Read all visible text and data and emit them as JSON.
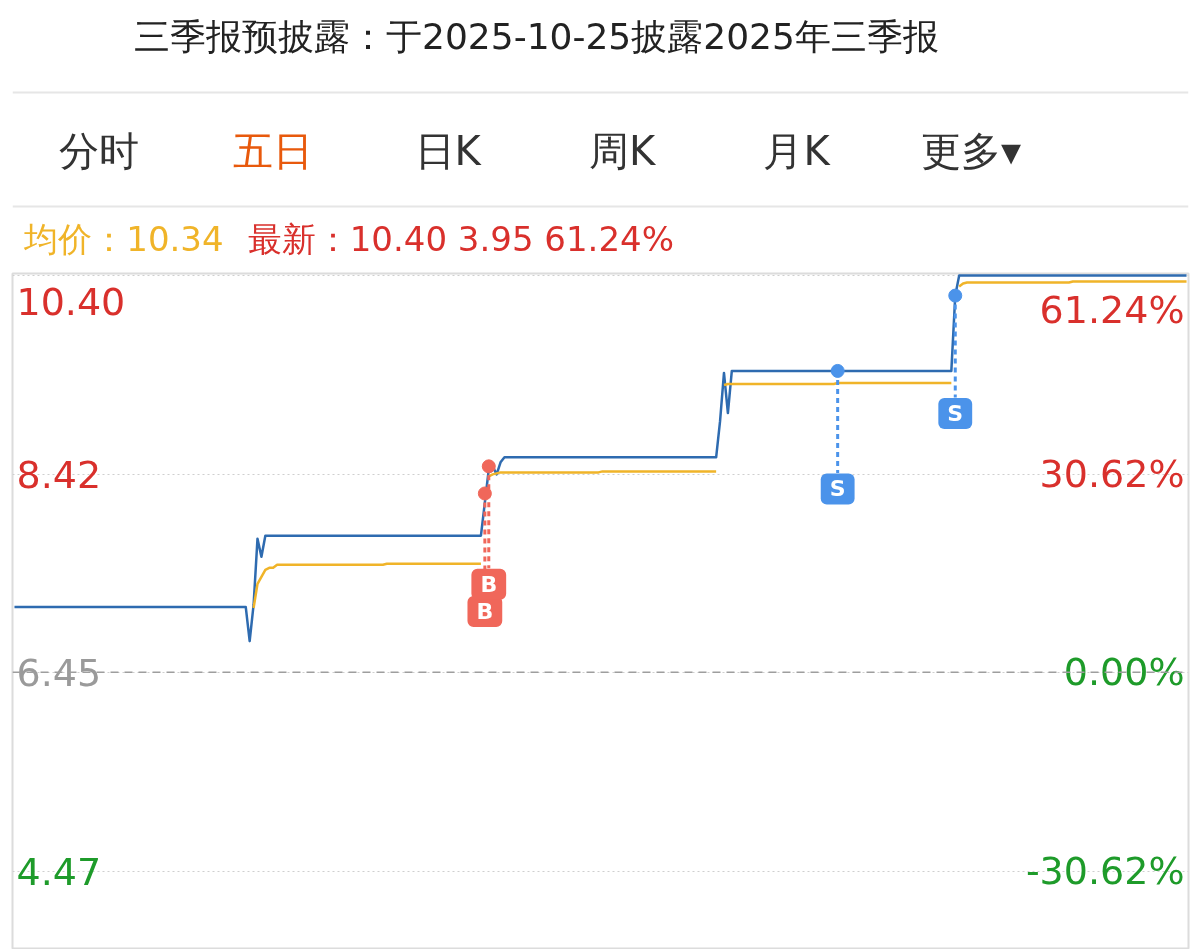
{
  "chart_data": {
    "type": "line",
    "title": "三季报预披露：于2025-10-25披露2025年三季报",
    "annotations": [
      "分时",
      "五日",
      "日K",
      "周K",
      "月K",
      "更多▾",
      "均价：10.34",
      "最新：10.40 3.95 61.24%"
    ],
    "categories": [
      null,
      null,
      null,
      null,
      null,
      null,
      null,
      null,
      null,
      null,
      null,
      null,
      null,
      null,
      null,
      null,
      null,
      null,
      null,
      null,
      null,
      null,
      null,
      null,
      null,
      null,
      null,
      null,
      null,
      null,
      null,
      null,
      null,
      null,
      null,
      null,
      null,
      null,
      null,
      null,
      null,
      null,
      null,
      null,
      null,
      null,
      null,
      null,
      null,
      null,
      null,
      null,
      null,
      null,
      null,
      null,
      null,
      null,
      null,
      null,
      null,
      null,
      null,
      null,
      null,
      null,
      null,
      null,
      null,
      null,
      null,
      null,
      null,
      null,
      null,
      null,
      null,
      null,
      null,
      null,
      null,
      null,
      null,
      null,
      null,
      null,
      null,
      null,
      null,
      null,
      null,
      null,
      null,
      null,
      null,
      null,
      null,
      null,
      null,
      null,
      null,
      null,
      null,
      null,
      null,
      null,
      null,
      null,
      null,
      null,
      null,
      null,
      null,
      null,
      null,
      null,
      null,
      null,
      null,
      null,
      null,
      null,
      null,
      null,
      null,
      null,
      null,
      null,
      null,
      null,
      null,
      null,
      null,
      null,
      null,
      null,
      null,
      null,
      null,
      null,
      null,
      null,
      null,
      null,
      null,
      null,
      null,
      null,
      null,
      null,
      null,
      null,
      null,
      null,
      null,
      null,
      null,
      null,
      null,
      null,
      null,
      null,
      null,
      null,
      null,
      null,
      null,
      null,
      null,
      null,
      null,
      null,
      null,
      null,
      null,
      null,
      null,
      null,
      null,
      null,
      null,
      null,
      null,
      null,
      null,
      null,
      null,
      null,
      null,
      null,
      null,
      null,
      null,
      null,
      null,
      null,
      null,
      null,
      null,
      null,
      null,
      null,
      null,
      null,
      null,
      null,
      null,
      null,
      null,
      null,
      null,
      null,
      null,
      null,
      null,
      null,
      null,
      null,
      null,
      null,
      null,
      null,
      null,
      null,
      null,
      null,
      null,
      null,
      null,
      null,
      null,
      null,
      null,
      null,
      null,
      null,
      null,
      null,
      null,
      null,
      null,
      null,
      null,
      null,
      null,
      null,
      null,
      null,
      null,
      null,
      null,
      null,
      null,
      null,
      null,
      null,
      null,
      null,
      null,
      null,
      null,
      null,
      null,
      null,
      null,
      null,
      null,
      null,
      null,
      null,
      null,
      null,
      null,
      null,
      null,
      null,
      null,
      null,
      null,
      null,
      null,
      null,
      null,
      null,
      null,
      null,
      null,
      null,
      null,
      null,
      null,
      null,
      null,
      null,
      null,
      null,
      null,
      null,
      null,
      null
    ],
    "series": [
      {
        "color": "#2e6bb0",
        "values": [
          7.1,
          7.1,
          7.1,
          7.1,
          7.1,
          7.1,
          7.1,
          7.1,
          7.1,
          7.1,
          7.1,
          7.1,
          7.1,
          7.1,
          7.1,
          7.1,
          7.1,
          7.1,
          7.1,
          7.1,
          7.1,
          7.1,
          7.1,
          7.1,
          7.1,
          7.1,
          7.1,
          7.1,
          7.1,
          7.1,
          7.1,
          7.1,
          7.1,
          7.1,
          7.1,
          7.1,
          7.1,
          7.1,
          7.1,
          7.1,
          7.1,
          7.1,
          7.1,
          7.1,
          7.1,
          7.1,
          7.1,
          7.1,
          7.1,
          7.1,
          7.1,
          7.1,
          7.1,
          7.1,
          7.1,
          7.1,
          7.1,
          7.1,
          7.1,
          7.1,
          6.76,
          7.12,
          7.78,
          7.6,
          7.81,
          7.81,
          7.81,
          7.81,
          7.81,
          7.81,
          7.81,
          7.81,
          7.81,
          7.81,
          7.81,
          7.81,
          7.81,
          7.81,
          7.81,
          7.81,
          7.81,
          7.81,
          7.81,
          7.81,
          7.81,
          7.81,
          7.81,
          7.81,
          7.81,
          7.81,
          7.81,
          7.81,
          7.81,
          7.81,
          7.81,
          7.81,
          7.81,
          7.81,
          7.81,
          7.81,
          7.81,
          7.81,
          7.81,
          7.81,
          7.81,
          7.81,
          7.81,
          7.81,
          7.81,
          7.81,
          7.81,
          7.81,
          7.81,
          7.81,
          7.81,
          7.81,
          7.81,
          7.81,
          7.81,
          7.81,
          8.14,
          8.47,
          8.5,
          8.42,
          8.54,
          8.59,
          8.59,
          8.59,
          8.59,
          8.59,
          8.59,
          8.59,
          8.59,
          8.59,
          8.59,
          8.59,
          8.59,
          8.59,
          8.59,
          8.59,
          8.59,
          8.59,
          8.59,
          8.59,
          8.59,
          8.59,
          8.59,
          8.59,
          8.59,
          8.59,
          8.59,
          8.59,
          8.59,
          8.59,
          8.59,
          8.59,
          8.59,
          8.59,
          8.59,
          8.59,
          8.59,
          8.59,
          8.59,
          8.59,
          8.59,
          8.59,
          8.59,
          8.59,
          8.59,
          8.59,
          8.59,
          8.59,
          8.59,
          8.59,
          8.59,
          8.59,
          8.59,
          8.59,
          8.59,
          8.59,
          8.95,
          9.43,
          9.03,
          9.45,
          9.45,
          9.45,
          9.45,
          9.45,
          9.45,
          9.45,
          9.45,
          9.45,
          9.45,
          9.45,
          9.45,
          9.45,
          9.45,
          9.45,
          9.45,
          9.45,
          9.45,
          9.45,
          9.45,
          9.45,
          9.45,
          9.45,
          9.45,
          9.45,
          9.45,
          9.45,
          9.45,
          9.45,
          9.45,
          9.45,
          9.45,
          9.45,
          9.45,
          9.45,
          9.45,
          9.45,
          9.45,
          9.45,
          9.45,
          9.45,
          9.45,
          9.45,
          9.45,
          9.45,
          9.45,
          9.45,
          9.45,
          9.45,
          9.45,
          9.45,
          9.45,
          9.45,
          9.45,
          9.45,
          9.45,
          9.45,
          10.2,
          10.4,
          10.4,
          10.4,
          10.4,
          10.4,
          10.4,
          10.4,
          10.4,
          10.4,
          10.4,
          10.4,
          10.4,
          10.4,
          10.4,
          10.4,
          10.4,
          10.4,
          10.4,
          10.4,
          10.4,
          10.4,
          10.4,
          10.4,
          10.4,
          10.4,
          10.4,
          10.4,
          10.4,
          10.4,
          10.4,
          10.4,
          10.4,
          10.4,
          10.4,
          10.4,
          10.4,
          10.4,
          10.4,
          10.4,
          10.4,
          10.4,
          10.4,
          10.4,
          10.4,
          10.4,
          10.4,
          10.4,
          10.4,
          10.4,
          10.4,
          10.4,
          10.4,
          10.4,
          10.4,
          10.4,
          10.4,
          10.4,
          10.4,
          10.4
        ]
      },
      {
        "color": "#f0b429",
        "values": [
          null,
          null,
          null,
          null,
          null,
          null,
          null,
          null,
          null,
          null,
          null,
          null,
          null,
          null,
          null,
          null,
          null,
          null,
          null,
          null,
          null,
          null,
          null,
          null,
          null,
          null,
          null,
          null,
          null,
          null,
          null,
          null,
          null,
          null,
          null,
          null,
          null,
          null,
          null,
          null,
          null,
          null,
          null,
          null,
          null,
          null,
          null,
          null,
          null,
          null,
          null,
          null,
          null,
          null,
          null,
          null,
          null,
          null,
          null,
          null,
          null,
          7.09,
          7.33,
          7.4,
          7.47,
          7.49,
          7.49,
          7.52,
          7.52,
          7.52,
          7.52,
          7.52,
          7.52,
          7.52,
          7.52,
          7.52,
          7.52,
          7.52,
          7.52,
          7.52,
          7.52,
          7.52,
          7.52,
          7.52,
          7.52,
          7.52,
          7.52,
          7.52,
          7.52,
          7.52,
          7.52,
          7.52,
          7.52,
          7.52,
          7.52,
          7.53,
          7.53,
          7.53,
          7.53,
          7.53,
          7.53,
          7.53,
          7.53,
          7.53,
          7.53,
          7.53,
          7.53,
          7.53,
          7.53,
          7.53,
          7.53,
          7.53,
          7.53,
          7.53,
          7.53,
          7.53,
          7.53,
          7.53,
          7.53,
          7.53,
          null,
          8.4,
          8.42,
          8.43,
          8.44,
          8.44,
          8.44,
          8.44,
          8.44,
          8.44,
          8.44,
          8.44,
          8.44,
          8.44,
          8.44,
          8.44,
          8.44,
          8.44,
          8.44,
          8.44,
          8.44,
          8.44,
          8.44,
          8.44,
          8.44,
          8.44,
          8.44,
          8.44,
          8.44,
          8.44,
          8.45,
          8.45,
          8.45,
          8.45,
          8.45,
          8.45,
          8.45,
          8.45,
          8.45,
          8.45,
          8.45,
          8.45,
          8.45,
          8.45,
          8.45,
          8.45,
          8.45,
          8.45,
          8.45,
          8.45,
          8.45,
          8.45,
          8.45,
          8.45,
          8.45,
          8.45,
          8.45,
          8.45,
          8.45,
          8.45,
          null,
          9.31,
          9.32,
          9.32,
          9.32,
          9.32,
          9.32,
          9.32,
          9.32,
          9.32,
          9.32,
          9.32,
          9.32,
          9.32,
          9.32,
          9.32,
          9.32,
          9.32,
          9.32,
          9.32,
          9.32,
          9.32,
          9.32,
          9.32,
          9.32,
          9.32,
          9.32,
          9.32,
          9.32,
          9.32,
          9.33,
          9.33,
          9.33,
          9.33,
          9.33,
          9.33,
          9.33,
          9.33,
          9.33,
          9.33,
          9.33,
          9.33,
          9.33,
          9.33,
          9.33,
          9.33,
          9.33,
          9.33,
          9.33,
          9.33,
          9.33,
          9.33,
          9.33,
          9.33,
          9.33,
          9.33,
          9.33,
          9.33,
          9.33,
          9.33,
          null,
          10.29,
          10.32,
          10.33,
          10.33,
          10.33,
          10.33,
          10.33,
          10.33,
          10.33,
          10.33,
          10.33,
          10.33,
          10.33,
          10.33,
          10.33,
          10.33,
          10.33,
          10.33,
          10.33,
          10.33,
          10.33,
          10.33,
          10.33,
          10.33,
          10.33,
          10.33,
          10.33,
          10.33,
          10.33,
          10.34,
          10.34,
          10.34,
          10.34,
          10.34,
          10.34,
          10.34,
          10.34,
          10.34,
          10.34,
          10.34,
          10.34,
          10.34,
          10.34,
          10.34,
          10.34,
          10.34,
          10.34,
          10.34,
          10.34,
          10.34,
          10.34,
          10.34,
          10.34,
          10.34,
          10.34,
          10.34,
          10.34,
          10.34,
          10.34
        ]
      },
      {
        "type": "scatter",
        "name": "B",
        "color": "#f0675a",
        "marker": "circle",
        "values": [
          null,
          null,
          null,
          null,
          null,
          null,
          null,
          null,
          null,
          null,
          null,
          null,
          null,
          null,
          null,
          null,
          null,
          null,
          null,
          null,
          null,
          null,
          null,
          null,
          null,
          null,
          null,
          null,
          null,
          null,
          null,
          null,
          null,
          null,
          null,
          null,
          null,
          null,
          null,
          null,
          null,
          null,
          null,
          null,
          null,
          null,
          null,
          null,
          null,
          null,
          null,
          null,
          null,
          null,
          null,
          null,
          null,
          null,
          null,
          null,
          null,
          null,
          null,
          null,
          null,
          null,
          null,
          null,
          null,
          null,
          null,
          null,
          null,
          null,
          null,
          null,
          null,
          null,
          null,
          null,
          null,
          null,
          null,
          null,
          null,
          null,
          null,
          null,
          null,
          null,
          null,
          null,
          null,
          null,
          null,
          null,
          null,
          null,
          null,
          null,
          null,
          null,
          null,
          null,
          null,
          null,
          null,
          null,
          null,
          null,
          null,
          null,
          null,
          null,
          null,
          null,
          null,
          null,
          null,
          null,
          8.23,
          8.5,
          null,
          null,
          null,
          null,
          null,
          null,
          null,
          null,
          null,
          null,
          null,
          null,
          null,
          null,
          null,
          null,
          null,
          null,
          null,
          null,
          null,
          null,
          null,
          null,
          null,
          null,
          null,
          null,
          null,
          null,
          null,
          null,
          null,
          null,
          null,
          null,
          null,
          null,
          null,
          null,
          null,
          null,
          null,
          null,
          null,
          null,
          null,
          null,
          null,
          null,
          null,
          null,
          null,
          null,
          null,
          null,
          null,
          null,
          null,
          null,
          null,
          null,
          null,
          null,
          null,
          null,
          null,
          null,
          null,
          null,
          null,
          null,
          null,
          null,
          null,
          null,
          null,
          null,
          null,
          null,
          null,
          null,
          null,
          null,
          null,
          null,
          null,
          null,
          null,
          null,
          null,
          null,
          null,
          null,
          null,
          null,
          null,
          null,
          null,
          null,
          null,
          null,
          null,
          null,
          null,
          null,
          null,
          null,
          null,
          null,
          null,
          null,
          null,
          null,
          null,
          null,
          null,
          null,
          null,
          null,
          null,
          null,
          null,
          null,
          null,
          null,
          null,
          null,
          null,
          null,
          null,
          null,
          null,
          null,
          null,
          null,
          null,
          null,
          null,
          null,
          null,
          null,
          null,
          null,
          null,
          null,
          null,
          null,
          null,
          null,
          null,
          null,
          null,
          null,
          null,
          null,
          null,
          null,
          null,
          null,
          null,
          null,
          null,
          null,
          null,
          null,
          null,
          null,
          null,
          null,
          null,
          null,
          null,
          null,
          null,
          null,
          null,
          null
        ]
      },
      {
        "type": "scatter",
        "name": "S",
        "color": "#4b93ea",
        "marker": "circle",
        "values": [
          null,
          null,
          null,
          null,
          null,
          null,
          null,
          null,
          null,
          null,
          null,
          null,
          null,
          null,
          null,
          null,
          null,
          null,
          null,
          null,
          null,
          null,
          null,
          null,
          null,
          null,
          null,
          null,
          null,
          null,
          null,
          null,
          null,
          null,
          null,
          null,
          null,
          null,
          null,
          null,
          null,
          null,
          null,
          null,
          null,
          null,
          null,
          null,
          null,
          null,
          null,
          null,
          null,
          null,
          null,
          null,
          null,
          null,
          null,
          null,
          null,
          null,
          null,
          null,
          null,
          null,
          null,
          null,
          null,
          null,
          null,
          null,
          null,
          null,
          null,
          null,
          null,
          null,
          null,
          null,
          null,
          null,
          null,
          null,
          null,
          null,
          null,
          null,
          null,
          null,
          null,
          null,
          null,
          null,
          null,
          null,
          null,
          null,
          null,
          null,
          null,
          null,
          null,
          null,
          null,
          null,
          null,
          null,
          null,
          null,
          null,
          null,
          null,
          null,
          null,
          null,
          null,
          null,
          null,
          null,
          null,
          null,
          null,
          null,
          null,
          null,
          null,
          null,
          null,
          null,
          null,
          null,
          null,
          null,
          null,
          null,
          null,
          null,
          null,
          null,
          null,
          null,
          null,
          null,
          null,
          null,
          null,
          null,
          null,
          null,
          null,
          null,
          null,
          null,
          null,
          null,
          null,
          null,
          null,
          null,
          null,
          null,
          null,
          null,
          null,
          null,
          null,
          null,
          null,
          null,
          null,
          null,
          null,
          null,
          null,
          null,
          null,
          null,
          null,
          null,
          null,
          null,
          null,
          null,
          null,
          null,
          null,
          null,
          null,
          null,
          null,
          null,
          null,
          null,
          null,
          null,
          null,
          null,
          null,
          null,
          null,
          null,
          null,
          null,
          null,
          null,
          null,
          null,
          null,
          null,
          9.45,
          null,
          null,
          null,
          null,
          null,
          null,
          null,
          null,
          null,
          null,
          null,
          null,
          null,
          null,
          null,
          null,
          null,
          null,
          null,
          null,
          null,
          null,
          null,
          null,
          null,
          null,
          null,
          null,
          null,
          10.2,
          null,
          null,
          null,
          null,
          null,
          null,
          null,
          null,
          null,
          null,
          null,
          null,
          null,
          null,
          null,
          null,
          null,
          null,
          null,
          null,
          null,
          null,
          null,
          null,
          null,
          null,
          null,
          null,
          null,
          null,
          null,
          null,
          null,
          null,
          null,
          null,
          null,
          null,
          null,
          null,
          null,
          null,
          null,
          null,
          null,
          null,
          null,
          null,
          null,
          null,
          null,
          null,
          null,
          null,
          null,
          null,
          null,
          null,
          null
        ]
      }
    ],
    "ylim": [
      3.69,
      10.42
    ],
    "yticks": [
      4.47,
      6.45,
      8.42,
      {
        "value": 10.4,
        "label": "10.40"
      }
    ],
    "y2lim": [
      -42.79,
      61.55
    ],
    "y2ticks": [
      {
        "value": -30.62,
        "label": "-30.62%"
      },
      {
        "value": 0,
        "label": "0.00%"
      },
      {
        "value": 30.62,
        "label": "30.62%"
      },
      {
        "value": 61.24,
        "label": "61.24%"
      }
    ],
    "ref_lines": [
      {
        "axis": "y",
        "value": 6.45,
        "color": "#9e9e9e",
        "line_style": "dashed"
      }
    ],
    "grid": "y",
    "tick_labels": "y"
  }
}
